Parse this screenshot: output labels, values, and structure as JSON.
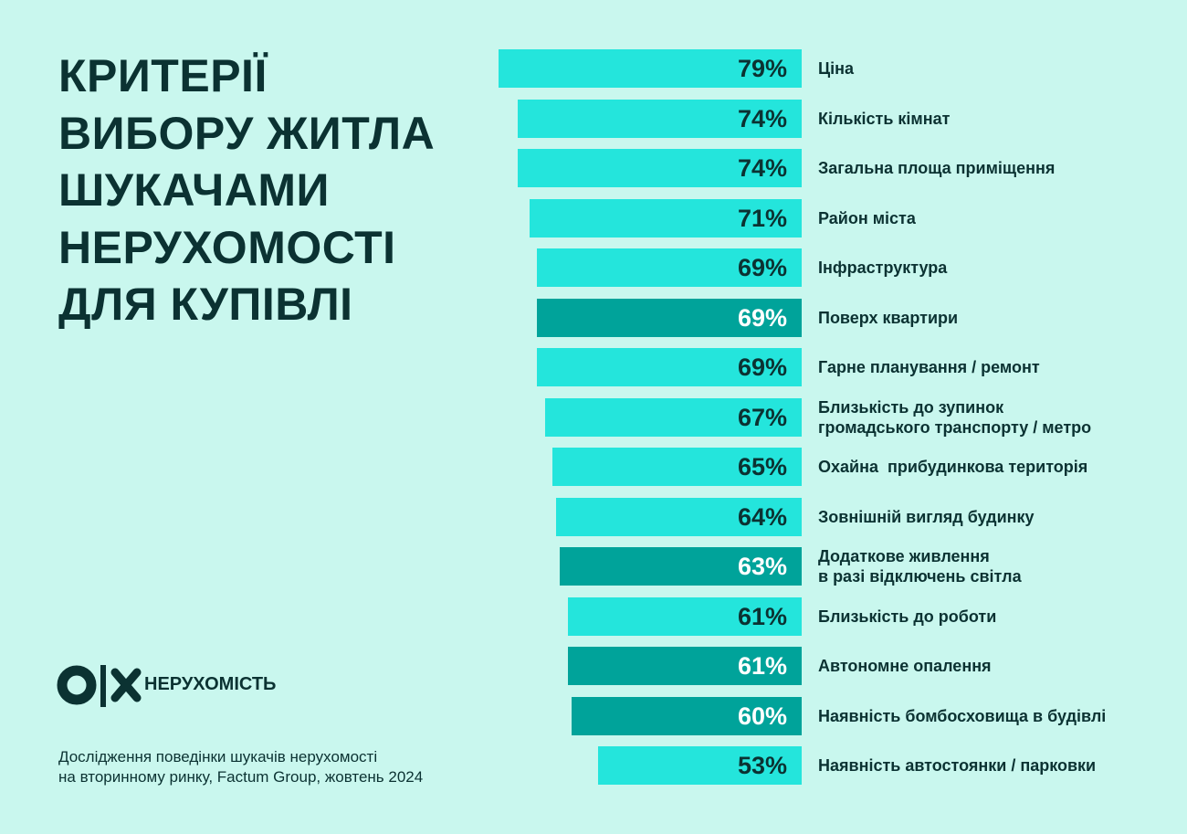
{
  "chart_data": {
    "type": "bar",
    "title": [
      "КРИТЕРІЇ",
      "ВИБОРУ ЖИТЛА",
      "ШУКАЧАМИ",
      "НЕРУХОМОСТІ",
      "ДЛЯ КУПІВЛІ"
    ],
    "categories": [
      "Ціна",
      "Кількість кімнат",
      "Загальна площа приміщення",
      "Район міста",
      "Інфраструктура",
      "Поверх квартири",
      "Гарне планування / ремонт",
      "Близькість до зупинок\nгромадського транспорту / метро",
      "Охайна  прибудинкова територія",
      "Зовнішній вигляд будинку",
      "Додаткове живлення\nв разі відключень світла",
      "Близькість до роботи",
      "Автономне опалення",
      "Наявність бомбосховища в будівлі",
      "Наявність автостоянки / парковки"
    ],
    "values": [
      79,
      74,
      74,
      71,
      69,
      69,
      69,
      67,
      65,
      64,
      63,
      61,
      61,
      60,
      53
    ],
    "value_labels": [
      "79%",
      "74%",
      "74%",
      "71%",
      "69%",
      "69%",
      "69%",
      "67%",
      "65%",
      "64%",
      "63%",
      "61%",
      "61%",
      "60%",
      "53%"
    ],
    "colors": [
      "#24e5dc",
      "#24e5dc",
      "#24e5dc",
      "#24e5dc",
      "#24e5dc",
      "#00a39a",
      "#24e5dc",
      "#24e5dc",
      "#24e5dc",
      "#24e5dc",
      "#00a39a",
      "#24e5dc",
      "#00a39a",
      "#00a39a",
      "#24e5dc"
    ],
    "logo_text": "НЕРУХОМІСТЬ",
    "source": [
      "Дослідження поведінки шукачів нерухомості",
      "на вторинному ринку, Factum Group, жовтень 2024"
    ]
  }
}
